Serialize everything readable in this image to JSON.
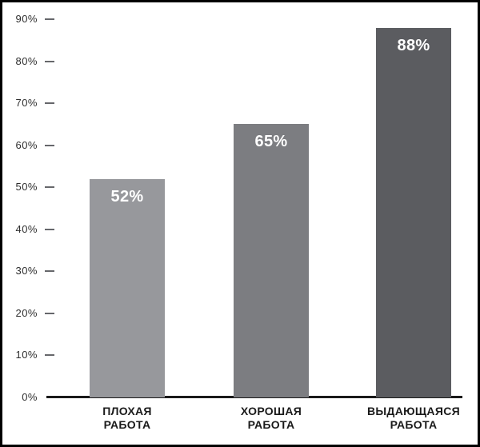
{
  "chart_data": {
    "type": "bar",
    "categories": [
      "ПЛОХАЯ\nРАБОТА",
      "ХОРОШАЯ\nРАБОТА",
      "ВЫДАЮЩАЯСЯ\nРАБОТА"
    ],
    "values": [
      52,
      65,
      88
    ],
    "value_labels": [
      "52%",
      "65%",
      "88%"
    ],
    "bar_colors": [
      "#97989c",
      "#7c7d81",
      "#5b5c60"
    ],
    "ytick_labels": [
      "0%",
      "10%",
      "20%",
      "30%",
      "40%",
      "50%",
      "60%",
      "70%",
      "80%",
      "90%"
    ],
    "ylim": [
      0,
      90
    ],
    "ytick_step": 10,
    "xlabel": "",
    "ylabel": "",
    "grid": false,
    "legend_position": "none",
    "value_label_color": "#ffffff",
    "axis_line_color": "#1a1a1a",
    "tick_dash_color": "#66676b",
    "ytick_label_color": "#2e2e2e",
    "category_label_color": "#1a1a1a",
    "frame_border_color": "#000000",
    "background_color": "#ffffff"
  }
}
